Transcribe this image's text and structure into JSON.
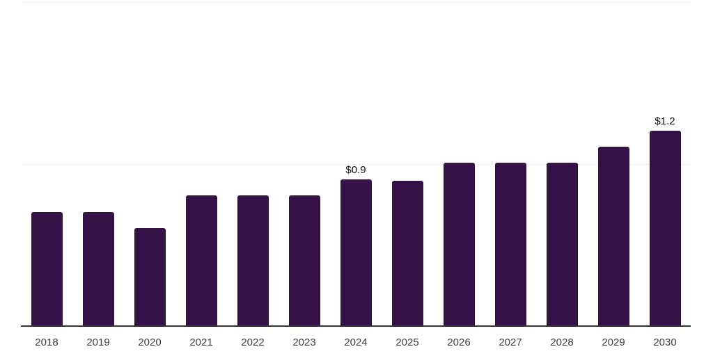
{
  "chart_data": {
    "type": "bar",
    "title": "",
    "xlabel": "",
    "ylabel": "",
    "categories": [
      "2018",
      "2019",
      "2020",
      "2021",
      "2022",
      "2023",
      "2024",
      "2025",
      "2026",
      "2027",
      "2028",
      "2029",
      "2030"
    ],
    "values": [
      0.7,
      0.7,
      0.6,
      0.8,
      0.8,
      0.8,
      0.9,
      0.89,
      1.0,
      1.0,
      1.0,
      1.1,
      1.2
    ],
    "data_labels": {
      "2024": "$0.9",
      "2030": "$1.2"
    },
    "ylim": [
      0,
      2
    ],
    "gridline_values": [
      1.0,
      2.0
    ],
    "grid": "horizontal-only",
    "legend": "none",
    "colors": {
      "bar": "#361148",
      "axis_line": "#333333",
      "gridline": "#efefef",
      "tick_label": "#3d3d3d",
      "data_label": "#111111",
      "background": "#ffffff"
    }
  }
}
